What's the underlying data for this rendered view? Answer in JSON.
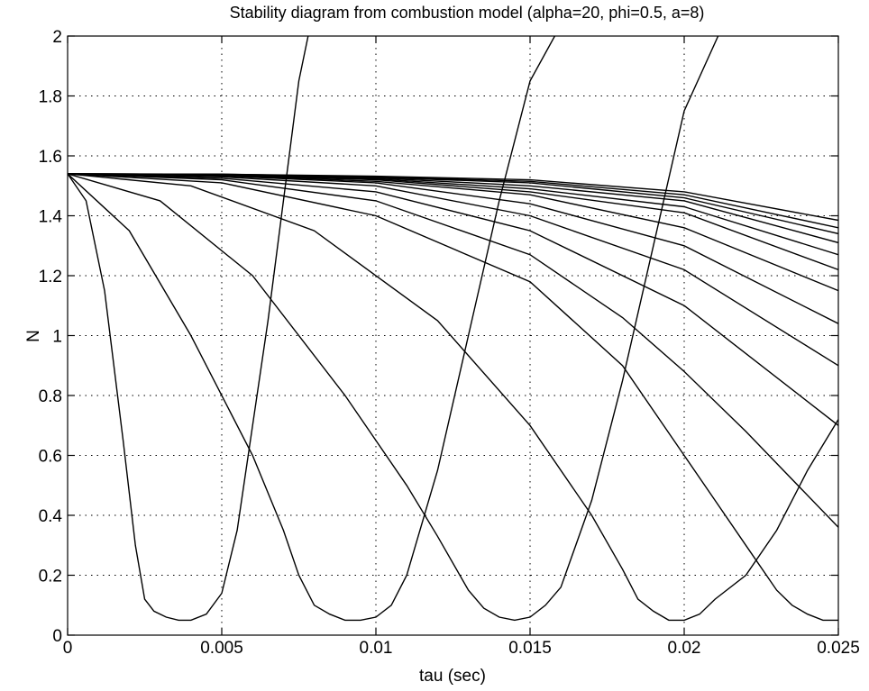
{
  "chart_data": {
    "type": "line",
    "title": "Stability diagram from combustion model (alpha=20, phi=0.5, a=8)",
    "xlabel": "tau (sec)",
    "ylabel": "N",
    "xlim": [
      0,
      0.025
    ],
    "ylim": [
      0,
      2
    ],
    "grid": true,
    "legend": "none",
    "x_ticks": [
      {
        "value": 0,
        "label": "0"
      },
      {
        "value": 0.005,
        "label": "0.005"
      },
      {
        "value": 0.01,
        "label": "0.01"
      },
      {
        "value": 0.015,
        "label": "0.015"
      },
      {
        "value": 0.02,
        "label": "0.02"
      },
      {
        "value": 0.025,
        "label": "0.025"
      }
    ],
    "y_ticks": [
      {
        "value": 0,
        "label": "0"
      },
      {
        "value": 0.2,
        "label": "0.2"
      },
      {
        "value": 0.4,
        "label": "0.4"
      },
      {
        "value": 0.6,
        "label": "0.6"
      },
      {
        "value": 0.8,
        "label": "0.8"
      },
      {
        "value": 1,
        "label": "1"
      },
      {
        "value": 1.2,
        "label": "1.2"
      },
      {
        "value": 1.4,
        "label": "1.4"
      },
      {
        "value": 1.6,
        "label": "1.6"
      },
      {
        "value": 1.8,
        "label": "1.8"
      },
      {
        "value": 2,
        "label": "2"
      }
    ],
    "series": [
      {
        "x": [
          0,
          0.0006,
          0.0012,
          0.0018,
          0.0022,
          0.0025,
          0.0028,
          0.0032,
          0.0036,
          0.004,
          0.0045,
          0.005,
          0.0055,
          0.006,
          0.0065,
          0.007,
          0.0075,
          0.0078
        ],
        "y": [
          1.54,
          1.45,
          1.15,
          0.65,
          0.3,
          0.12,
          0.08,
          0.06,
          0.05,
          0.05,
          0.07,
          0.14,
          0.35,
          0.7,
          1.05,
          1.45,
          1.85,
          2.0
        ]
      },
      {
        "x": [
          0,
          0.002,
          0.004,
          0.006,
          0.007,
          0.0075,
          0.008,
          0.0085,
          0.009,
          0.0095,
          0.01,
          0.0105,
          0.011,
          0.012,
          0.013,
          0.014,
          0.015,
          0.0158
        ],
        "y": [
          1.54,
          1.35,
          1.0,
          0.6,
          0.35,
          0.2,
          0.1,
          0.07,
          0.05,
          0.05,
          0.06,
          0.1,
          0.2,
          0.55,
          1.0,
          1.45,
          1.85,
          2.0
        ]
      },
      {
        "x": [
          0,
          0.003,
          0.006,
          0.009,
          0.011,
          0.012,
          0.013,
          0.0135,
          0.014,
          0.0145,
          0.015,
          0.0155,
          0.016,
          0.017,
          0.018,
          0.019,
          0.02,
          0.0211
        ],
        "y": [
          1.54,
          1.45,
          1.2,
          0.8,
          0.5,
          0.33,
          0.15,
          0.09,
          0.06,
          0.05,
          0.06,
          0.1,
          0.16,
          0.45,
          0.85,
          1.3,
          1.75,
          2.0
        ]
      },
      {
        "x": [
          0,
          0.004,
          0.008,
          0.012,
          0.015,
          0.017,
          0.018,
          0.0185,
          0.019,
          0.0195,
          0.02,
          0.0205,
          0.021,
          0.022,
          0.023,
          0.024,
          0.025
        ],
        "y": [
          1.54,
          1.5,
          1.35,
          1.05,
          0.7,
          0.4,
          0.22,
          0.12,
          0.08,
          0.05,
          0.05,
          0.07,
          0.12,
          0.2,
          0.35,
          0.55,
          0.72
        ]
      },
      {
        "x": [
          0,
          0.005,
          0.01,
          0.015,
          0.018,
          0.02,
          0.021,
          0.022,
          0.023,
          0.0235,
          0.024,
          0.0245,
          0.025
        ],
        "y": [
          1.54,
          1.51,
          1.4,
          1.18,
          0.9,
          0.6,
          0.45,
          0.3,
          0.15,
          0.1,
          0.07,
          0.05,
          0.05
        ]
      },
      {
        "x": [
          0,
          0.005,
          0.01,
          0.015,
          0.018,
          0.02,
          0.022,
          0.025
        ],
        "y": [
          1.54,
          1.52,
          1.45,
          1.27,
          1.06,
          0.88,
          0.68,
          0.36
        ]
      },
      {
        "x": [
          0,
          0.005,
          0.01,
          0.015,
          0.02,
          0.025
        ],
        "y": [
          1.54,
          1.525,
          1.48,
          1.35,
          1.1,
          0.7
        ]
      },
      {
        "x": [
          0,
          0.005,
          0.01,
          0.015,
          0.02,
          0.025
        ],
        "y": [
          1.54,
          1.53,
          1.5,
          1.4,
          1.22,
          0.9
        ]
      },
      {
        "x": [
          0,
          0.005,
          0.01,
          0.015,
          0.02,
          0.025
        ],
        "y": [
          1.54,
          1.533,
          1.51,
          1.44,
          1.3,
          1.04
        ]
      },
      {
        "x": [
          0,
          0.005,
          0.01,
          0.015,
          0.02,
          0.025
        ],
        "y": [
          1.54,
          1.535,
          1.515,
          1.47,
          1.36,
          1.15
        ]
      },
      {
        "x": [
          0,
          0.005,
          0.01,
          0.015,
          0.02,
          0.025
        ],
        "y": [
          1.54,
          1.536,
          1.52,
          1.48,
          1.41,
          1.22
        ]
      },
      {
        "x": [
          0,
          0.005,
          0.01,
          0.015,
          0.02,
          0.025
        ],
        "y": [
          1.54,
          1.537,
          1.523,
          1.49,
          1.43,
          1.27
        ]
      },
      {
        "x": [
          0,
          0.005,
          0.01,
          0.015,
          0.02,
          0.025
        ],
        "y": [
          1.54,
          1.538,
          1.526,
          1.5,
          1.45,
          1.31
        ]
      },
      {
        "x": [
          0,
          0.005,
          0.01,
          0.015,
          0.02,
          0.025
        ],
        "y": [
          1.54,
          1.538,
          1.528,
          1.51,
          1.46,
          1.34
        ]
      },
      {
        "x": [
          0,
          0.005,
          0.01,
          0.015,
          0.02,
          0.025
        ],
        "y": [
          1.54,
          1.539,
          1.53,
          1.515,
          1.47,
          1.36
        ]
      },
      {
        "x": [
          0,
          0.005,
          0.01,
          0.015,
          0.02,
          0.025
        ],
        "y": [
          1.54,
          1.539,
          1.532,
          1.52,
          1.48,
          1.385
        ]
      }
    ]
  }
}
